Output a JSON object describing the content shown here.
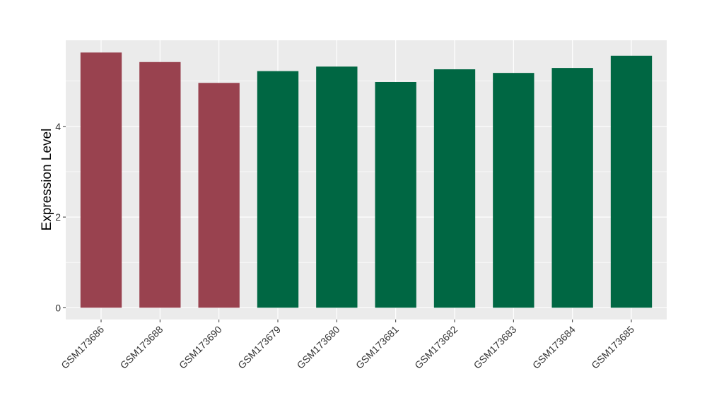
{
  "chart_data": {
    "type": "bar",
    "title": "",
    "xlabel": "",
    "ylabel": "Expression Level",
    "ylim": [
      -0.26,
      5.9
    ],
    "yticks": [
      0,
      2,
      4
    ],
    "yticks_labels": [
      "0",
      "2",
      "4"
    ],
    "grid": true,
    "legend": "none",
    "categories": [
      "GSM173686",
      "GSM173688",
      "GSM173690",
      "GSM173679",
      "GSM173680",
      "GSM173681",
      "GSM173682",
      "GSM173683",
      "GSM173684",
      "GSM173685"
    ],
    "values": [
      5.63,
      5.42,
      4.96,
      5.22,
      5.32,
      4.98,
      5.26,
      5.18,
      5.29,
      5.56
    ],
    "groups": [
      "a",
      "a",
      "a",
      "b",
      "b",
      "b",
      "b",
      "b",
      "b",
      "b"
    ],
    "group_colors": {
      "a": "#99424f",
      "b": "#006743"
    },
    "panel_background": "#ebebeb",
    "grid_color": "#ffffff"
  }
}
